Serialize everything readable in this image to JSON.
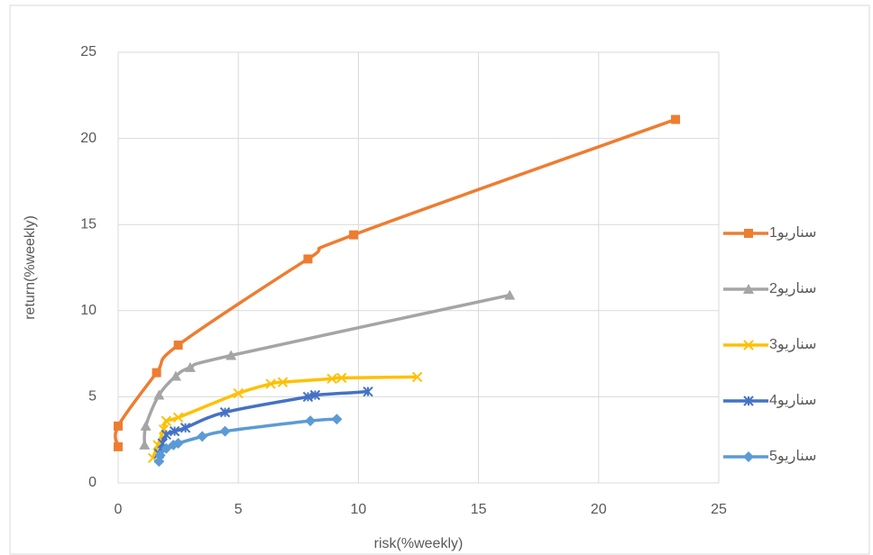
{
  "chart_data": {
    "type": "scatter-line",
    "x_label": "risk(%weekly)",
    "y_label": "return(%weekly)",
    "xlim": [
      0,
      25
    ],
    "ylim": [
      0,
      25
    ],
    "xticks": [
      0,
      5,
      10,
      15,
      20,
      25
    ],
    "yticks": [
      0,
      5,
      10,
      15,
      20,
      25
    ],
    "grid": true,
    "legend": "right",
    "series": [
      {
        "name": "سناریو1",
        "color": "#ED7D31",
        "marker": "square",
        "x": [
          0,
          0,
          1.6,
          2.5,
          7.9,
          9.8,
          23.2
        ],
        "values": [
          2.1,
          3.3,
          6.4,
          8.0,
          13.0,
          14.4,
          21.1
        ]
      },
      {
        "name": "سناریو2",
        "color": "#A5A5A5",
        "marker": "triangle",
        "x": [
          1.1,
          1.15,
          1.7,
          2.4,
          3.0,
          4.7,
          16.3
        ],
        "values": [
          2.2,
          3.3,
          5.1,
          6.2,
          6.7,
          7.4,
          10.9
        ]
      },
      {
        "name": "سناریو3",
        "color": "#FFC000",
        "marker": "x",
        "x": [
          1.45,
          1.65,
          1.9,
          2.0,
          2.5,
          5.0,
          6.35,
          6.85,
          8.9,
          9.3,
          12.45
        ],
        "values": [
          1.45,
          2.2,
          3.1,
          3.6,
          3.8,
          5.2,
          5.75,
          5.85,
          6.05,
          6.1,
          6.15
        ]
      },
      {
        "name": "سناریو4",
        "color": "#4472C4",
        "marker": "star",
        "x": [
          1.7,
          1.85,
          2.0,
          2.35,
          2.8,
          4.45,
          7.9,
          8.2,
          10.4
        ],
        "values": [
          1.7,
          2.3,
          2.8,
          3.0,
          3.2,
          4.1,
          5.0,
          5.1,
          5.3
        ]
      },
      {
        "name": "سناریو5",
        "color": "#5B9BD5",
        "marker": "diamond",
        "x": [
          1.7,
          1.75,
          2.0,
          2.3,
          2.5,
          3.5,
          4.45,
          8.0,
          9.1
        ],
        "values": [
          1.25,
          1.6,
          2.0,
          2.2,
          2.3,
          2.7,
          3.0,
          3.6,
          3.7
        ]
      }
    ]
  }
}
